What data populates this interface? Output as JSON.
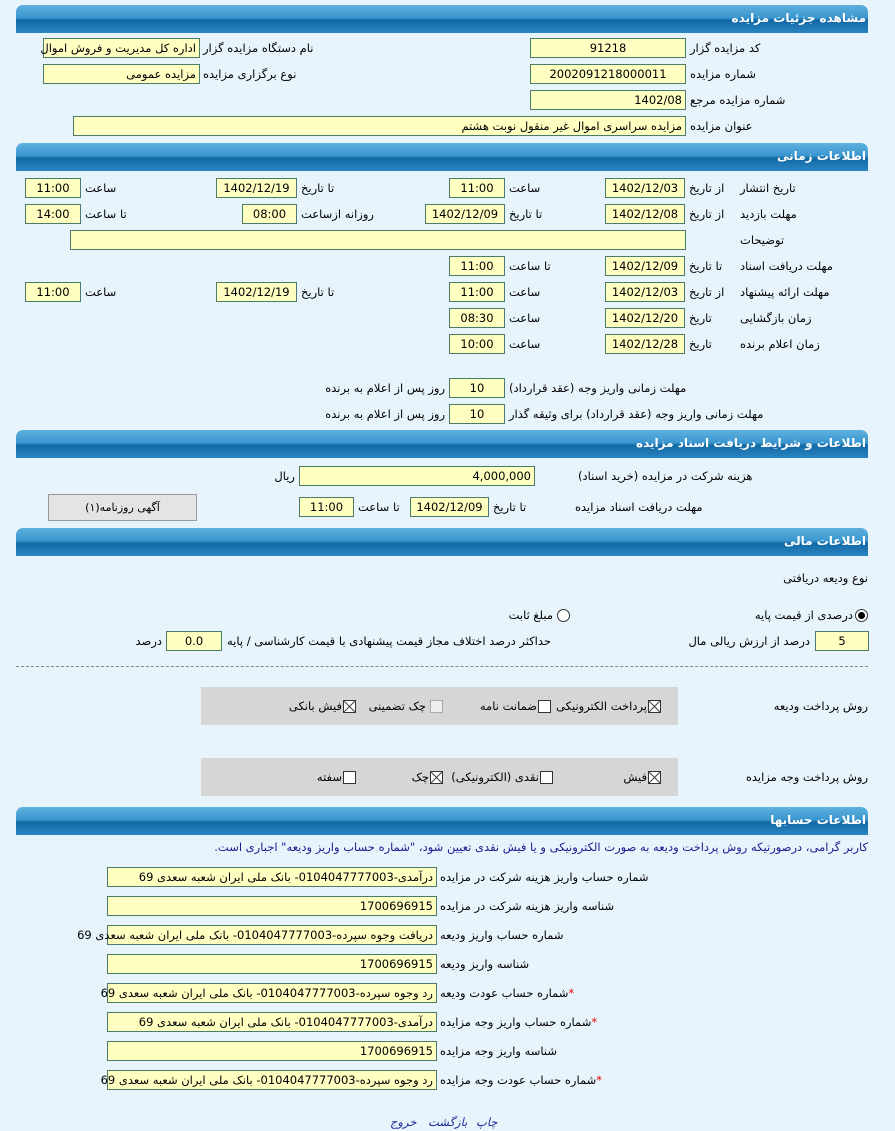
{
  "details": {
    "title": "مشاهده جزئیات مزایده",
    "code_label": "کد مزایده گزار",
    "code": "91218",
    "org_label": "نام دستگاه مزایده گزار",
    "org": "اداره کل مدیریت و فروش اموال",
    "number_label": "شماره مزایده",
    "number": "2002091218000011",
    "type_label": "نوع برگزاری مزایده",
    "type": "مزایده عمومی",
    "ref_label": "شماره مزایده مرجع",
    "ref": "1402/08",
    "subject_label": "عنوان مزایده",
    "subject": "مزایده سراسری اموال غیر منقول نوبت هشتم"
  },
  "timing": {
    "title": "اطلاعات زمانی",
    "from_date": "از تاریخ",
    "to_date": "تا تاریخ",
    "date": "تاریخ",
    "hour": "ساعت",
    "to_hour": "تا ساعت",
    "daily_from": "روزانه ازساعت",
    "publish": {
      "label": "تاریخ انتشار",
      "from": "1402/12/03",
      "from_time": "11:00",
      "to": "1402/12/19",
      "to_time": "11:00"
    },
    "visit": {
      "label": "مهلت بازدید",
      "from": "1402/12/08",
      "to": "1402/12/09",
      "daily_from": "08:00",
      "to_time": "14:00"
    },
    "desc": {
      "label": "توضیحات",
      "value": ""
    },
    "docs": {
      "label": "مهلت دریافت اسناد",
      "to": "1402/12/09",
      "to_time": "11:00"
    },
    "offer": {
      "label": "مهلت ارائه پیشنهاد",
      "from": "1402/12/03",
      "from_time": "11:00",
      "to": "1402/12/19",
      "to_time": "11:00"
    },
    "opening": {
      "label": "زمان بازگشایی",
      "date": "1402/12/20",
      "time": "08:30"
    },
    "winner": {
      "label": "زمان اعلام برنده",
      "date": "1402/12/28",
      "time": "10:00"
    },
    "pay_contract": {
      "label": "مهلت زمانی واریز وجه (عقد قرارداد)",
      "value": "10",
      "suffix": "روز پس از اعلام به برنده"
    },
    "pay_collateral": {
      "label": "مهلت زمانی واریز وجه (عقد قرارداد) برای وثیقه گذار",
      "value": "10",
      "suffix": "روز پس از اعلام به برنده"
    }
  },
  "docs": {
    "title": "اطلاعات و شرایط دریافت اسناد مزایده",
    "fee_label": "هزینه شرکت در مزایده (خرید اسناد)",
    "fee": "4,000,000",
    "currency": "ریال",
    "deadline_label": "مهلت دریافت اسناد مزایده",
    "to_date_label": "تا تاریخ",
    "to_date": "1402/12/09",
    "to_time_label": "تا ساعت",
    "to_time": "11:00",
    "ad_button": "آگهی روزنامه(۱)"
  },
  "finance": {
    "title": "اطلاعات مالی",
    "deposit_type_label": "نوع ودیعه دریافتی",
    "radio_percent": "درصدی از قیمت پایه",
    "radio_fixed": "مبلغ ثابت",
    "selected": "درصدی از قیمت پایه",
    "percent": "5",
    "percent_suffix": "درصد از ارزش ریالی مال",
    "max_diff_label": "حداکثر درصد اختلاف مجاز قیمت پیشنهادی با قیمت کارشناسی / پایه",
    "max_diff": "0.0",
    "max_diff_suffix": "درصد",
    "deposit_pay_label": "روش پرداخت ودیعه",
    "deposit_methods": [
      {
        "label": "پرداخت الکترونیکی",
        "checked": true
      },
      {
        "label": "ضمانت نامه",
        "checked": false
      },
      {
        "label": "چک تضمینی",
        "checked": false,
        "disabled": true
      },
      {
        "label": "فیش بانکی",
        "checked": true
      }
    ],
    "auction_pay_label": "روش پرداخت وجه مزایده",
    "auction_methods": [
      {
        "label": "فیش",
        "checked": true
      },
      {
        "label": "نقدی (الکترونیکی)",
        "checked": false
      },
      {
        "label": "چک",
        "checked": true
      },
      {
        "label": "سفته",
        "checked": false
      }
    ]
  },
  "accounts": {
    "title": "اطلاعات حسابها",
    "note": "کاربر گرامی، درصورتیکه روش پرداخت ودیعه به صورت الکترونیکی و یا فیش نقدی تعیین شود، \"شماره حساب واریز ودیعه\" اجباری است.",
    "rows": [
      {
        "label": "شماره حساب واریز هزینه شرکت در مزایده",
        "value": "درآمدی-0104047777003- بانک ملی ایران شعبه سعدی 69",
        "required": false
      },
      {
        "label": "شناسه واریز هزینه شرکت در مزایده",
        "value": "1700696915",
        "required": false
      },
      {
        "label": "شماره حساب واریز ودیعه",
        "value": "دریافت وجوه سپرده-0104047777003- بانک ملی ایران شعبه سعدی 69",
        "required": false
      },
      {
        "label": "شناسه واریز ودیعه",
        "value": "1700696915",
        "required": false
      },
      {
        "label": "شماره حساب عودت ودیعه",
        "value": "رد وجوه سپرده-0104047777003- بانک ملی ایران شعبه سعدی 69",
        "required": true
      },
      {
        "label": "شماره حساب واریز وجه مزایده",
        "value": "درآمدی-0104047777003- بانک ملی ایران شعبه سعدی 69",
        "required": true
      },
      {
        "label": "شناسه واریز وجه مزایده",
        "value": "1700696915",
        "required": false
      },
      {
        "label": "شماره حساب عودت وجه مزایده",
        "value": "رد وجوه سپرده-0104047777003- بانک ملی ایران شعبه سعدی 69",
        "required": true
      }
    ]
  },
  "footer": {
    "print": "چاپ",
    "back": "بازگشت",
    "exit": "خروج"
  },
  "colors": {
    "header": "#1f7bb8",
    "input_bg": "#ffffc2",
    "page_bg": "#e8f4fc",
    "note": "#1a1a90"
  }
}
